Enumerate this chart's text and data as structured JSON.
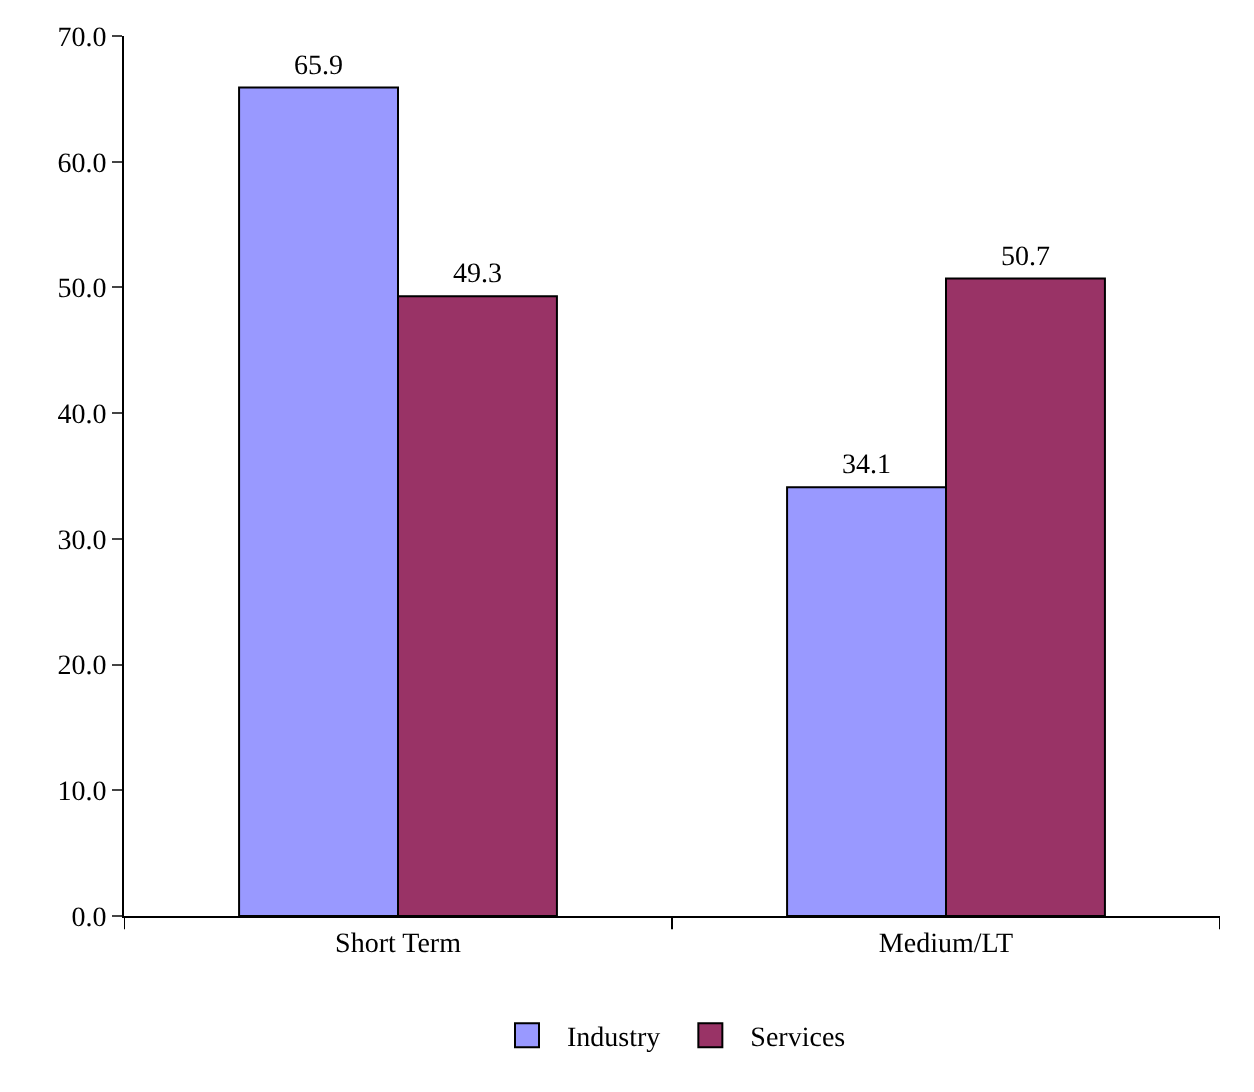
{
  "chart_data": {
    "type": "bar",
    "categories": [
      "Short Term",
      "Medium/LT"
    ],
    "series": [
      {
        "name": "Industry",
        "color": "#9999ff",
        "values": [
          65.9,
          34.1
        ]
      },
      {
        "name": "Services",
        "color": "#993366",
        "values": [
          49.3,
          50.7
        ]
      }
    ],
    "ylim": [
      0,
      70
    ],
    "yticks": [
      {
        "value": 0,
        "label": "0.0"
      },
      {
        "value": 10,
        "label": "10.0"
      },
      {
        "value": 20,
        "label": "20.0"
      },
      {
        "value": 30,
        "label": "30.0"
      },
      {
        "value": 40,
        "label": "40.0"
      },
      {
        "value": 50,
        "label": "50.0"
      },
      {
        "value": 60,
        "label": "60.0"
      },
      {
        "value": 70,
        "label": "70.0"
      }
    ],
    "data_labels": true,
    "legend": "bottom"
  }
}
